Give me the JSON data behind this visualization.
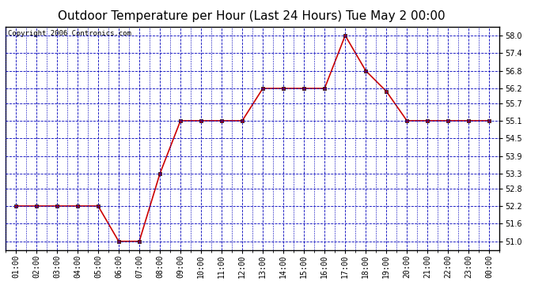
{
  "title": "Outdoor Temperature per Hour (Last 24 Hours) Tue May 2 00:00",
  "copyright": "Copyright 2006 Contronics.com",
  "hours": [
    "01:00",
    "02:00",
    "03:00",
    "04:00",
    "05:00",
    "06:00",
    "07:00",
    "08:00",
    "09:00",
    "10:00",
    "11:00",
    "12:00",
    "13:00",
    "14:00",
    "15:00",
    "16:00",
    "17:00",
    "18:00",
    "19:00",
    "20:00",
    "21:00",
    "22:00",
    "23:00",
    "00:00"
  ],
  "temperatures": [
    52.2,
    52.2,
    52.2,
    52.2,
    52.2,
    51.0,
    51.0,
    53.3,
    55.1,
    55.1,
    55.1,
    55.1,
    56.2,
    56.2,
    56.2,
    56.2,
    58.0,
    56.8,
    56.1,
    55.1,
    55.1,
    55.1,
    55.1,
    55.1
  ],
  "ylim_min": 50.7,
  "ylim_max": 58.3,
  "yticks": [
    51.0,
    51.6,
    52.2,
    52.8,
    53.3,
    53.9,
    54.5,
    55.1,
    55.7,
    56.2,
    56.8,
    57.4,
    58.0
  ],
  "line_color": "#cc0000",
  "marker_color": "#000000",
  "bg_color": "#ffffff",
  "plot_bg_color": "#ffffff",
  "grid_color": "#0000bb",
  "title_fontsize": 11,
  "tick_fontsize": 7,
  "copyright_fontsize": 6.5
}
